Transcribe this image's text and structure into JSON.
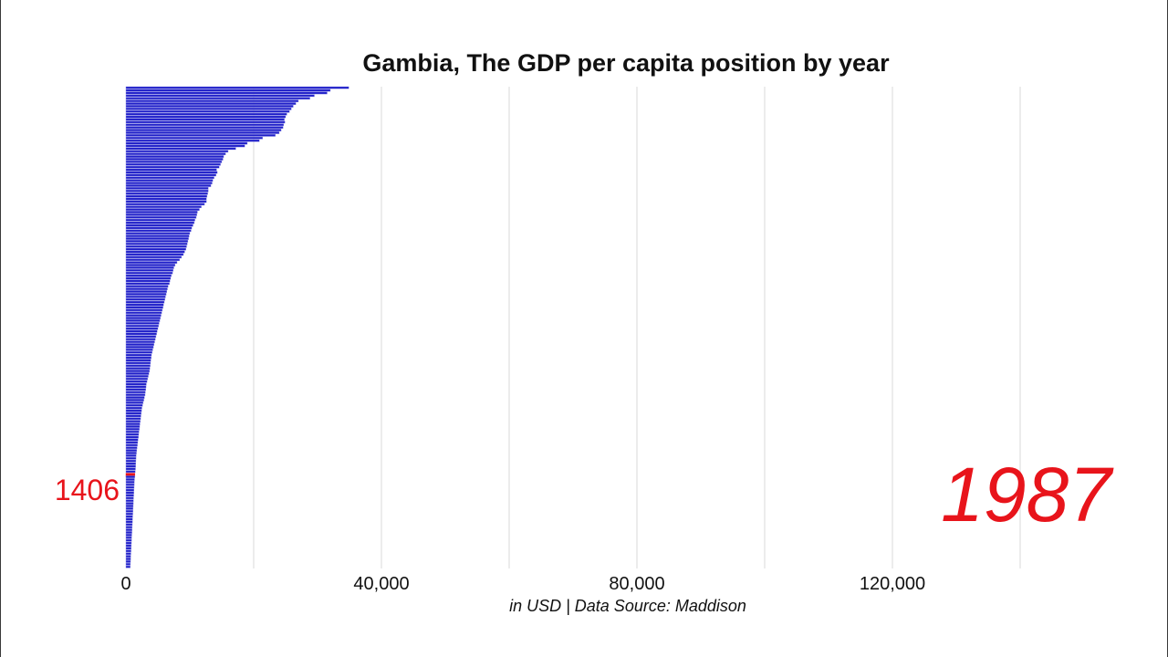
{
  "chart_data": {
    "type": "bar",
    "orientation": "horizontal",
    "title": "Gambia, The GDP per capita position by year",
    "caption": "in USD | Data Source: Maddison",
    "year": "1987",
    "highlight": {
      "label": "1406",
      "value": 1406,
      "rank": 147
    },
    "xlim": [
      0,
      145000
    ],
    "x_ticks": [
      {
        "value": 0,
        "label": "0"
      },
      {
        "value": 40000,
        "label": "40,000"
      },
      {
        "value": 80000,
        "label": "80,000"
      },
      {
        "value": 120000,
        "label": "120,000"
      }
    ],
    "gridlines": [
      20000,
      40000,
      60000,
      80000,
      100000,
      120000,
      140000
    ],
    "grid": true,
    "bar_color": "#1f1fc8",
    "bar_edge_color": "#8c8ce6",
    "highlight_color": "#e8141b",
    "text_color": "#e8141b",
    "values": [
      34900,
      32000,
      31500,
      29500,
      28800,
      27000,
      26600,
      26200,
      25900,
      25600,
      25200,
      25000,
      24800,
      24900,
      24700,
      24600,
      24300,
      24000,
      23400,
      21400,
      20900,
      19000,
      18600,
      17200,
      16000,
      15600,
      15300,
      15200,
      15000,
      14800,
      14600,
      14200,
      14300,
      14100,
      13800,
      13600,
      13500,
      13300,
      12900,
      12900,
      12800,
      12700,
      12600,
      12600,
      12300,
      11800,
      11500,
      11200,
      11100,
      11000,
      10800,
      10700,
      10500,
      10300,
      10200,
      10000,
      9900,
      9800,
      9700,
      9600,
      9500,
      9400,
      9200,
      9000,
      8700,
      8400,
      8000,
      7700,
      7500,
      7400,
      7300,
      7100,
      7000,
      6900,
      6800,
      6600,
      6500,
      6400,
      6300,
      6200,
      6100,
      6000,
      5900,
      5800,
      5700,
      5600,
      5500,
      5400,
      5300,
      5200,
      5100,
      5000,
      4900,
      4800,
      4700,
      4600,
      4500,
      4400,
      4300,
      4200,
      4100,
      4000,
      3950,
      3900,
      3850,
      3800,
      3750,
      3700,
      3600,
      3500,
      3400,
      3300,
      3200,
      3150,
      3100,
      3050,
      3000,
      2900,
      2800,
      2700,
      2600,
      2500,
      2450,
      2400,
      2350,
      2300,
      2250,
      2200,
      2150,
      2100,
      2050,
      2000,
      1950,
      1900,
      1850,
      1800,
      1750,
      1700,
      1650,
      1600,
      1580,
      1560,
      1540,
      1520,
      1500,
      1460,
      1406,
      1380,
      1350,
      1320,
      1300,
      1280,
      1260,
      1240,
      1220,
      1200,
      1180,
      1160,
      1140,
      1120,
      1100,
      1080,
      1060,
      1040,
      1020,
      1000,
      980,
      960,
      940,
      920,
      900,
      880,
      860,
      840,
      820,
      800,
      780,
      760,
      740,
      720,
      700,
      680
    ]
  }
}
